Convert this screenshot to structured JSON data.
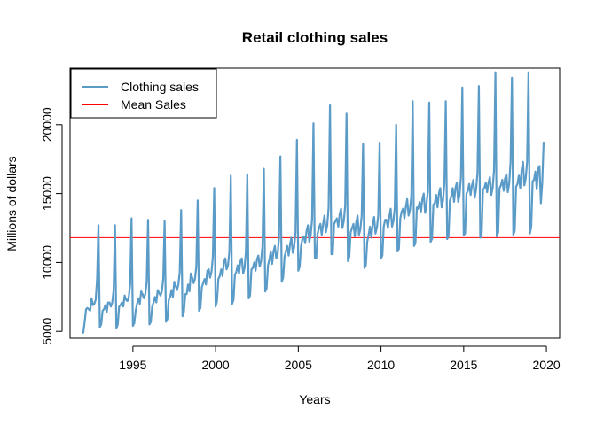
{
  "chart_data": {
    "type": "line",
    "title": "Retail clothing sales",
    "xlabel": "Years",
    "ylabel": "Millions of dollars",
    "xlim": [
      1991.2,
      2020.8
    ],
    "ylim": [
      4500,
      24100
    ],
    "x_ticks": [
      1995,
      2000,
      2005,
      2010,
      2015,
      2020
    ],
    "y_ticks": [
      5000,
      10000,
      15000,
      20000
    ],
    "grid": false,
    "legend_position": "top-left",
    "series": [
      {
        "name": "Clothing sales",
        "color": "#5b9bc8",
        "x_start": 1992.0,
        "x_step_years": 0.0833333,
        "values": [
          4900,
          5700,
          6600,
          6700,
          6600,
          6500,
          7400,
          6900,
          7000,
          7300,
          8800,
          12700,
          5300,
          5500,
          6500,
          6600,
          6900,
          6400,
          7100,
          7100,
          6800,
          7100,
          8000,
          12700,
          5200,
          5500,
          6800,
          6900,
          7100,
          6800,
          7600,
          7300,
          7200,
          7500,
          8400,
          13200,
          5400,
          5600,
          6500,
          7000,
          7400,
          7000,
          7900,
          7700,
          7400,
          7700,
          8600,
          13100,
          5500,
          5700,
          6800,
          7100,
          7500,
          7100,
          8000,
          7800,
          7600,
          7900,
          8800,
          13000,
          5700,
          5900,
          7300,
          7500,
          8000,
          7500,
          8600,
          8300,
          8000,
          8400,
          9300,
          13800,
          6100,
          6400,
          7700,
          7700,
          8400,
          7900,
          9200,
          8900,
          8500,
          8800,
          9700,
          14500,
          6500,
          6700,
          8200,
          8500,
          8800,
          8400,
          9400,
          9500,
          8900,
          9300,
          10400,
          15400,
          6800,
          7200,
          8800,
          9000,
          9500,
          9000,
          10000,
          10300,
          9500,
          9800,
          10800,
          16300,
          7000,
          7300,
          9100,
          9300,
          9800,
          9200,
          10100,
          10300,
          9200,
          9600,
          10800,
          16400,
          7400,
          7600,
          9500,
          9600,
          10000,
          9400,
          10200,
          10500,
          9700,
          10100,
          11200,
          16800,
          7900,
          8100,
          9800,
          10200,
          10800,
          9900,
          10800,
          11200,
          10300,
          10600,
          11800,
          17700,
          8600,
          8900,
          10400,
          10800,
          11200,
          10500,
          11300,
          11800,
          10700,
          11100,
          12200,
          18900,
          9400,
          9700,
          11200,
          11700,
          11900,
          11400,
          12300,
          12700,
          11500,
          12000,
          13100,
          20100,
          10300,
          10300,
          12100,
          12500,
          12800,
          12000,
          12800,
          13400,
          12200,
          12700,
          14000,
          21400,
          10600,
          10600,
          12800,
          13000,
          13200,
          12600,
          13500,
          13900,
          12500,
          13000,
          14100,
          20800,
          10100,
          10400,
          12200,
          12500,
          12800,
          11900,
          12900,
          13400,
          12000,
          12400,
          13400,
          18600,
          9600,
          9800,
          11500,
          12000,
          12600,
          11800,
          12800,
          13300,
          12100,
          12500,
          13400,
          18700,
          10300,
          10500,
          12600,
          13100,
          13100,
          12500,
          13300,
          13900,
          12600,
          13000,
          14000,
          20000,
          10800,
          11000,
          13200,
          13700,
          13900,
          13200,
          14000,
          14600,
          13400,
          13800,
          14800,
          21700,
          11200,
          11400,
          14000,
          13900,
          14400,
          13700,
          14600,
          15000,
          13600,
          14200,
          15200,
          21600,
          11500,
          11700,
          14200,
          14300,
          14900,
          14000,
          15000,
          15400,
          14000,
          14500,
          15800,
          21700,
          11700,
          11900,
          14500,
          14800,
          15400,
          14400,
          15400,
          15800,
          14400,
          14900,
          16200,
          22700,
          12000,
          12100,
          15000,
          15200,
          15700,
          14900,
          15600,
          16000,
          14700,
          15300,
          16500,
          22800,
          11800,
          12000,
          15300,
          15400,
          15800,
          15100,
          15800,
          16200,
          14900,
          15400,
          16700,
          23800,
          11900,
          12200,
          15400,
          15600,
          16000,
          15200,
          16100,
          16400,
          15100,
          15700,
          17300,
          23400,
          12000,
          12300,
          15500,
          15700,
          16300,
          15400,
          16700,
          17300,
          15600,
          16100,
          17300,
          23800,
          12100,
          12600,
          15900,
          16000,
          16600,
          15300,
          16800,
          17000,
          14300,
          15800,
          18700
        ]
      },
      {
        "name": "Mean Sales",
        "color": "#ff0000",
        "value": 11800
      }
    ]
  }
}
